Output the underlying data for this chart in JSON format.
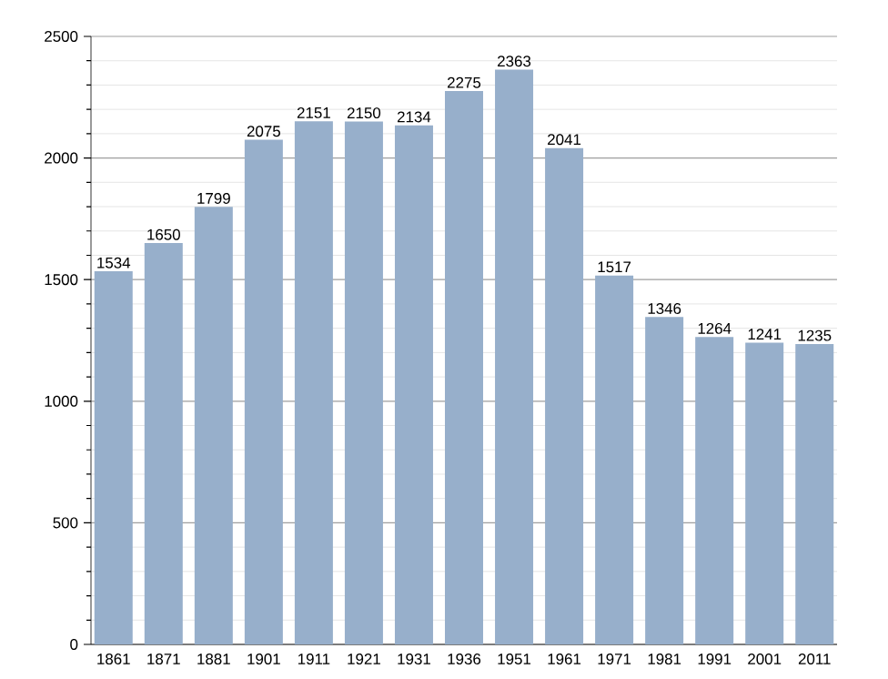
{
  "chart_data": {
    "type": "bar",
    "categories": [
      "1861",
      "1871",
      "1881",
      "1901",
      "1911",
      "1921",
      "1931",
      "1936",
      "1951",
      "1961",
      "1971",
      "1981",
      "1991",
      "2001",
      "2011"
    ],
    "values": [
      1534,
      1650,
      1799,
      2075,
      2151,
      2150,
      2134,
      2275,
      2363,
      2041,
      1517,
      1346,
      1264,
      1241,
      1235
    ],
    "color": "#97afcb",
    "ylim": [
      0,
      2500
    ],
    "yticks": [
      0,
      500,
      1000,
      1500,
      2000,
      2500
    ],
    "grid": "y",
    "data_labels": true
  }
}
